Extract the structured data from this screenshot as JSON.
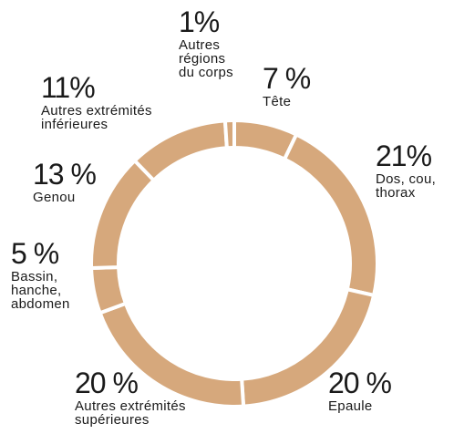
{
  "chart_data": {
    "type": "donut",
    "categories": [
      "Tête",
      "Dos, cou,\nthorax",
      "Epaule",
      "Autres extrémités\nsupérieures",
      "Bassin,\nhanche,\nabdomen",
      "Genou",
      "Autres extrémités\ninférieures",
      "Autres\nrégions\ndu corps"
    ],
    "values": [
      7,
      21,
      20,
      20,
      5,
      13,
      11,
      1
    ],
    "value_labels": [
      "7 %",
      "21%",
      "20 %",
      "20 %",
      "5 %",
      "13 %",
      "11%",
      "1%"
    ],
    "color": "#d6a87c"
  }
}
